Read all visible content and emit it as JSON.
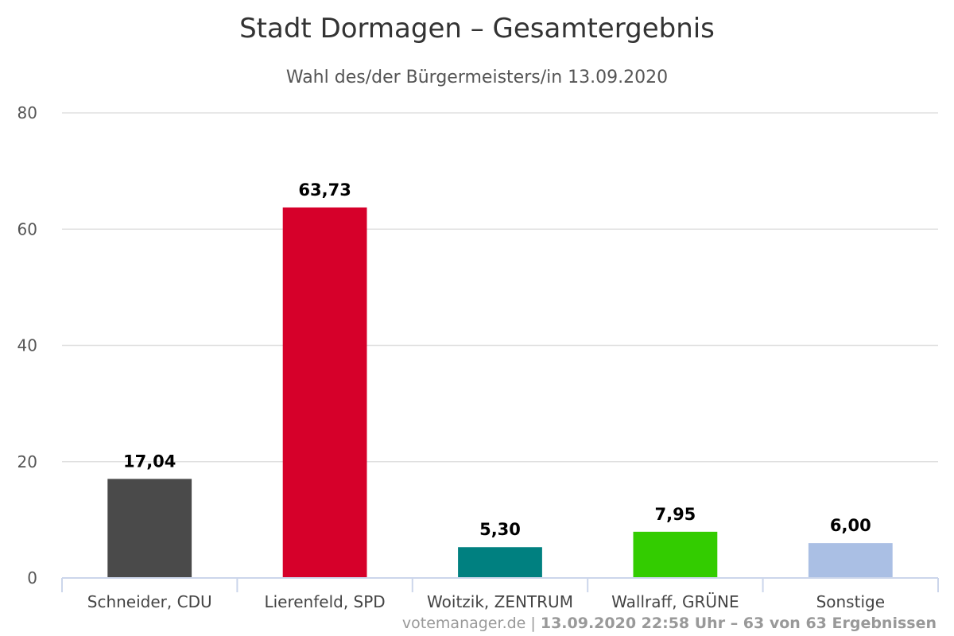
{
  "chart_data": {
    "type": "bar",
    "title": "Stadt Dormagen – Gesamtergebnis",
    "subtitle": "Wahl des/der Bürgermeisters/in 13.09.2020",
    "categories": [
      "Schneider, CDU",
      "Lierenfeld, SPD",
      "Woitzik, ZENTRUM",
      "Wallraff, GRÜNE",
      "Sonstige"
    ],
    "values": [
      17.04,
      63.73,
      5.3,
      7.95,
      6.0
    ],
    "value_labels": [
      "17,04",
      "63,73",
      "5,30",
      "7,95",
      "6,00"
    ],
    "colors": [
      "#4a4a4a",
      "#d6002a",
      "#008080",
      "#33cc00",
      "#aabfe4"
    ],
    "ylim": [
      0,
      80
    ],
    "yticks": [
      0,
      20,
      40,
      60,
      80
    ],
    "grid": true,
    "legend": "none"
  },
  "credits": {
    "source": "votemanager.de",
    "separator": " | ",
    "detail": "13.09.2020 22:58 Uhr – 63 von 63 Ergebnissen"
  }
}
